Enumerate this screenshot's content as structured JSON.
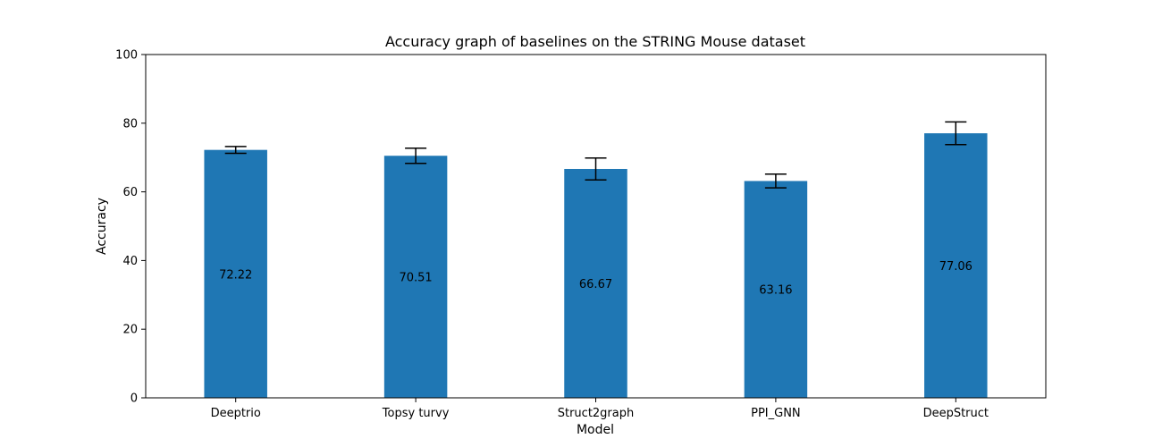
{
  "chart_data": {
    "type": "bar",
    "title": "Accuracy graph of baselines on the STRING Mouse dataset",
    "xlabel": "Model",
    "ylabel": "Accuracy",
    "categories": [
      "Deeptrio",
      "Topsy turvy",
      "Struct2graph",
      "PPI_GNN",
      "DeepStruct"
    ],
    "values": [
      72.22,
      70.51,
      66.67,
      63.16,
      77.06
    ],
    "value_labels": [
      "72.22",
      "70.51",
      "66.67",
      "63.16",
      "77.06"
    ],
    "error": [
      1.0,
      2.2,
      3.2,
      2.0,
      3.3
    ],
    "ylim": [
      0,
      100
    ],
    "yticks": [
      0,
      20,
      40,
      60,
      80,
      100
    ],
    "ytick_labels": [
      "0",
      "20",
      "40",
      "60",
      "80",
      "100"
    ],
    "grid": false,
    "legend": "none",
    "bar_color": "#1f77b4",
    "error_color": "#000000"
  }
}
